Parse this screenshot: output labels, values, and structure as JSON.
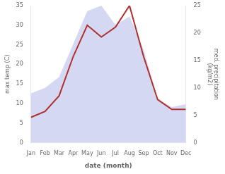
{
  "chart_data": {
    "type": "line",
    "xlabel": "date (month)",
    "ylabel": "max temp (C)",
    "y2label": "med. precipitation\n(kg/m2)",
    "categories": [
      "Jan",
      "Feb",
      "Mar",
      "Apr",
      "May",
      "Jun",
      "Jul",
      "Aug",
      "Sep",
      "Oct",
      "Nov",
      "Dec"
    ],
    "series": [
      {
        "type": "area",
        "axis": "y2",
        "color": "#b0b8e8",
        "values": [
          9.0,
          10.0,
          12.0,
          18.0,
          24.0,
          25.0,
          21.5,
          23.0,
          17.0,
          8.0,
          6.5,
          7.0
        ]
      },
      {
        "type": "line",
        "axis": "y",
        "color": "#b03030",
        "values": [
          6.5,
          8.0,
          12.0,
          22.0,
          30.0,
          27.0,
          29.5,
          35.0,
          22.0,
          11.0,
          8.5,
          8.5
        ]
      }
    ],
    "ylim": [
      0,
      35
    ],
    "yticks": [
      0,
      5,
      10,
      15,
      20,
      25,
      30,
      35
    ],
    "y2lim": [
      0,
      25
    ],
    "y2ticks": [
      0,
      5,
      10,
      15,
      20,
      25
    ],
    "grid": false
  }
}
